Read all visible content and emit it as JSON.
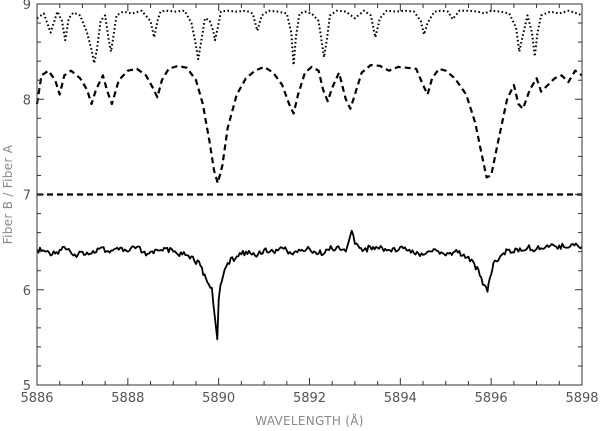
{
  "chart_data": {
    "type": "line",
    "xlabel": "WAVELENGTH (Å)",
    "ylabel": "Fiber B / Fiber A",
    "xlim": [
      5886,
      5898
    ],
    "ylim": [
      5,
      9
    ],
    "x_ticks": [
      "5886",
      "5888",
      "5890",
      "5892",
      "5894",
      "5896",
      "5898"
    ],
    "y_ticks": [
      "5",
      "6",
      "7",
      "8",
      "9"
    ],
    "grid": false,
    "reference_line": {
      "y": 7.0,
      "style": "dashed"
    },
    "series": [
      {
        "style": "dotted",
        "x": [
          5886.0,
          5886.15,
          5886.3,
          5886.45,
          5886.55,
          5886.62,
          5886.7,
          5886.8,
          5886.95,
          5887.1,
          5887.2,
          5887.26,
          5887.32,
          5887.4,
          5887.5,
          5887.58,
          5887.63,
          5887.68,
          5887.75,
          5887.9,
          5888.1,
          5888.3,
          5888.5,
          5888.58,
          5888.65,
          5888.72,
          5888.85,
          5889.05,
          5889.25,
          5889.4,
          5889.48,
          5889.55,
          5889.62,
          5889.7,
          5889.8,
          5889.88,
          5889.92,
          5889.98,
          5890.05,
          5890.2,
          5890.4,
          5890.6,
          5890.75,
          5890.85,
          5890.95,
          5891.1,
          5891.3,
          5891.5,
          5891.6,
          5891.65,
          5891.7,
          5891.78,
          5891.9,
          5892.05,
          5892.2,
          5892.32,
          5892.38,
          5892.45,
          5892.6,
          5892.8,
          5893.0,
          5893.2,
          5893.35,
          5893.45,
          5893.55,
          5893.7,
          5893.9,
          5894.1,
          5894.3,
          5894.45,
          5894.52,
          5894.6,
          5894.75,
          5894.9,
          5895.05,
          5895.15,
          5895.3,
          5895.5,
          5895.7,
          5895.85,
          5896.0,
          5896.2,
          5896.4,
          5896.55,
          5896.62,
          5896.7,
          5896.8,
          5896.9,
          5896.96,
          5897.02,
          5897.1,
          5897.3,
          5897.5,
          5897.7,
          5897.9,
          5898.0
        ],
        "y": [
          8.85,
          8.9,
          8.7,
          8.92,
          8.82,
          8.62,
          8.85,
          8.91,
          8.88,
          8.7,
          8.52,
          8.38,
          8.52,
          8.82,
          8.88,
          8.62,
          8.5,
          8.65,
          8.88,
          8.92,
          8.9,
          8.93,
          8.82,
          8.65,
          8.82,
          8.92,
          8.93,
          8.92,
          8.93,
          8.8,
          8.62,
          8.42,
          8.62,
          8.85,
          8.83,
          8.72,
          8.62,
          8.75,
          8.92,
          8.93,
          8.92,
          8.93,
          8.9,
          8.72,
          8.88,
          8.93,
          8.92,
          8.9,
          8.7,
          8.36,
          8.65,
          8.9,
          8.92,
          8.9,
          8.82,
          8.44,
          8.62,
          8.88,
          8.93,
          8.92,
          8.85,
          8.93,
          8.88,
          8.65,
          8.85,
          8.93,
          8.92,
          8.93,
          8.92,
          8.82,
          8.68,
          8.8,
          8.92,
          8.93,
          8.92,
          8.84,
          8.93,
          8.93,
          8.92,
          8.9,
          8.93,
          8.92,
          8.9,
          8.75,
          8.5,
          8.68,
          8.88,
          8.7,
          8.45,
          8.7,
          8.88,
          8.92,
          8.9,
          8.93,
          8.9,
          8.88
        ]
      },
      {
        "style": "dashed",
        "x": [
          5886.0,
          5886.1,
          5886.25,
          5886.4,
          5886.5,
          5886.6,
          5886.75,
          5886.95,
          5887.1,
          5887.2,
          5887.3,
          5887.45,
          5887.55,
          5887.65,
          5887.8,
          5888.0,
          5888.2,
          5888.4,
          5888.55,
          5888.65,
          5888.75,
          5888.9,
          5889.1,
          5889.3,
          5889.5,
          5889.65,
          5889.8,
          5889.9,
          5889.98,
          5890.08,
          5890.2,
          5890.4,
          5890.6,
          5890.8,
          5891.0,
          5891.2,
          5891.4,
          5891.55,
          5891.65,
          5891.75,
          5891.9,
          5892.05,
          5892.2,
          5892.3,
          5892.4,
          5892.5,
          5892.65,
          5892.8,
          5892.9,
          5893.0,
          5893.15,
          5893.35,
          5893.55,
          5893.75,
          5893.95,
          5894.15,
          5894.35,
          5894.5,
          5894.6,
          5894.7,
          5894.85,
          5895.0,
          5895.2,
          5895.45,
          5895.65,
          5895.8,
          5895.9,
          5896.0,
          5896.15,
          5896.35,
          5896.5,
          5896.6,
          5896.7,
          5896.85,
          5897.0,
          5897.1,
          5897.25,
          5897.4,
          5897.55,
          5897.7,
          5897.85,
          5898.0
        ],
        "y": [
          7.95,
          8.25,
          8.3,
          8.2,
          8.05,
          8.25,
          8.3,
          8.22,
          8.1,
          7.95,
          8.1,
          8.25,
          8.08,
          7.95,
          8.2,
          8.3,
          8.32,
          8.25,
          8.12,
          8.02,
          8.2,
          8.32,
          8.35,
          8.33,
          8.2,
          7.95,
          7.55,
          7.25,
          7.12,
          7.3,
          7.7,
          8.05,
          8.22,
          8.3,
          8.34,
          8.28,
          8.15,
          7.95,
          7.85,
          8.05,
          8.28,
          8.34,
          8.3,
          8.1,
          7.98,
          8.12,
          8.28,
          8.0,
          7.9,
          8.05,
          8.28,
          8.36,
          8.35,
          8.3,
          8.34,
          8.33,
          8.32,
          8.15,
          8.05,
          8.22,
          8.32,
          8.3,
          8.22,
          8.05,
          7.75,
          7.4,
          7.18,
          7.2,
          7.55,
          8.0,
          8.15,
          7.95,
          7.9,
          8.1,
          8.22,
          8.08,
          8.15,
          8.22,
          8.25,
          8.18,
          8.3,
          8.25
        ]
      },
      {
        "style": "solid",
        "x": [
          5886.0,
          5886.2,
          5886.4,
          5886.6,
          5886.8,
          5887.0,
          5887.2,
          5887.4,
          5887.6,
          5887.8,
          5888.0,
          5888.2,
          5888.4,
          5888.6,
          5888.8,
          5889.0,
          5889.2,
          5889.4,
          5889.6,
          5889.75,
          5889.85,
          5889.92,
          5889.97,
          5890.0,
          5890.04,
          5890.1,
          5890.2,
          5890.4,
          5890.6,
          5890.8,
          5891.0,
          5891.2,
          5891.4,
          5891.6,
          5891.8,
          5892.0,
          5892.2,
          5892.4,
          5892.6,
          5892.8,
          5892.93,
          5893.0,
          5893.2,
          5893.4,
          5893.6,
          5893.8,
          5894.0,
          5894.2,
          5894.4,
          5894.6,
          5894.8,
          5895.0,
          5895.2,
          5895.4,
          5895.6,
          5895.75,
          5895.85,
          5895.92,
          5895.97,
          5896.05,
          5896.2,
          5896.4,
          5896.6,
          5896.8,
          5897.0,
          5897.2,
          5897.4,
          5897.6,
          5897.8,
          5898.0
        ],
        "y": [
          6.42,
          6.4,
          6.38,
          6.45,
          6.36,
          6.4,
          6.38,
          6.44,
          6.39,
          6.42,
          6.4,
          6.45,
          6.36,
          6.42,
          6.44,
          6.4,
          6.37,
          6.35,
          6.25,
          6.08,
          6.02,
          5.7,
          5.48,
          5.9,
          6.05,
          6.15,
          6.28,
          6.35,
          6.4,
          6.36,
          6.42,
          6.4,
          6.44,
          6.38,
          6.41,
          6.43,
          6.38,
          6.42,
          6.45,
          6.4,
          6.62,
          6.48,
          6.42,
          6.45,
          6.44,
          6.4,
          6.45,
          6.42,
          6.38,
          6.4,
          6.41,
          6.36,
          6.4,
          6.37,
          6.3,
          6.15,
          6.05,
          5.98,
          6.12,
          6.28,
          6.35,
          6.42,
          6.4,
          6.44,
          6.43,
          6.45,
          6.46,
          6.45,
          6.48,
          6.45
        ]
      }
    ]
  }
}
